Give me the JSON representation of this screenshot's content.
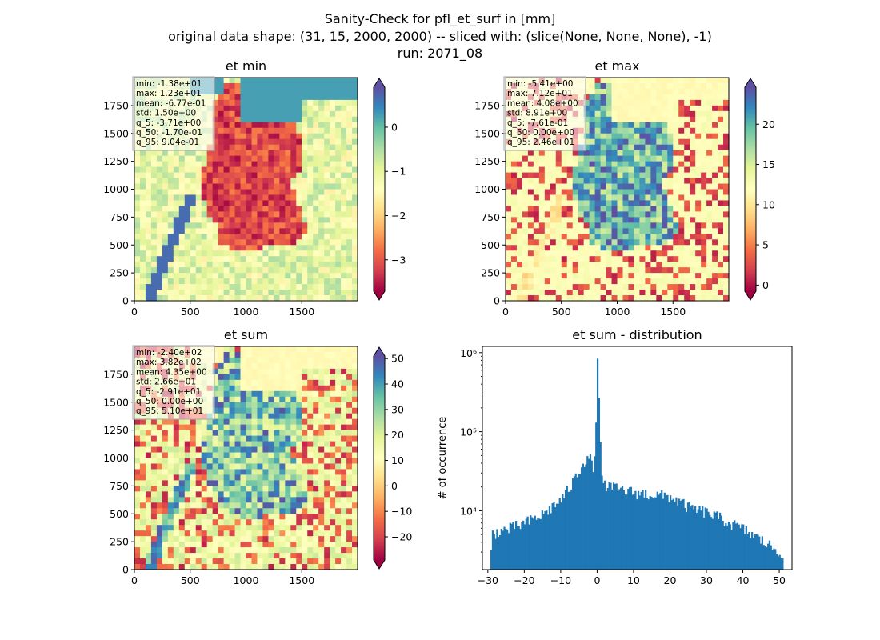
{
  "figure": {
    "suptitle": [
      "Sanity-Check for pfl_et_surf in [mm]",
      "original data shape: (31, 15, 2000, 2000) -- sliced with: (slice(None, None, None), -1)",
      "run: 2071_08"
    ]
  },
  "chart_data": [
    {
      "type": "heatmap",
      "title": "et min",
      "colormap": "Spectral",
      "xlim": [
        0,
        2000
      ],
      "ylim": [
        0,
        2000
      ],
      "xticks": [
        0,
        500,
        1000,
        1500
      ],
      "yticks": [
        0,
        250,
        500,
        750,
        1000,
        1250,
        1500,
        1750
      ],
      "colorbar": {
        "range": [
          -3.71,
          0.904
        ],
        "ticks": [
          0,
          -1,
          -2,
          -3
        ],
        "extend": "both"
      },
      "stats": [
        "min: -1.38e+01",
        "max: 1.23e+01",
        "mean: -6.77e-01",
        "std: 1.50e+00",
        "q_5: -3.71e+00",
        "q_50: -1.70e-01",
        "q_95: 9.04e-01"
      ]
    },
    {
      "type": "heatmap",
      "title": "et max",
      "colormap": "Spectral",
      "xlim": [
        0,
        2000
      ],
      "ylim": [
        0,
        2000
      ],
      "xticks": [
        0,
        500,
        1000,
        1500
      ],
      "yticks": [
        0,
        250,
        500,
        750,
        1000,
        1250,
        1500,
        1750
      ],
      "colorbar": {
        "range": [
          -0.761,
          24.6
        ],
        "ticks": [
          0,
          5,
          10,
          15,
          20
        ],
        "extend": "both"
      },
      "stats": [
        "min: -5.41e+00",
        "max: 7.12e+01",
        "mean: 4.08e+00",
        "std: 8.91e+00",
        "q_5: -7.61e-01",
        "q_50: 0.00e+00",
        "q_95: 2.46e+01"
      ]
    },
    {
      "type": "heatmap",
      "title": "et sum",
      "colormap": "Spectral",
      "xlim": [
        0,
        2000
      ],
      "ylim": [
        0,
        2000
      ],
      "xticks": [
        0,
        500,
        1000,
        1500
      ],
      "yticks": [
        0,
        250,
        500,
        750,
        1000,
        1250,
        1500,
        1750
      ],
      "colorbar": {
        "range": [
          -29.1,
          51
        ],
        "ticks": [
          -20,
          -10,
          0,
          10,
          20,
          30,
          40,
          50
        ],
        "extend": "both"
      },
      "stats": [
        "min: -2.40e+02",
        "max: 3.82e+02",
        "mean: 4.35e+00",
        "std: 2.66e+01",
        "q_5: -2.91e+01",
        "q_50: 0.00e+00",
        "q_95: 5.10e+01"
      ]
    },
    {
      "type": "bar",
      "title": "et sum - distribution",
      "ylabel": "# of occurrence",
      "yscale": "log",
      "xlim": [
        -31.5,
        53.5
      ],
      "ylim": [
        1800,
        1200000
      ],
      "xticks": [
        -30,
        -20,
        -10,
        0,
        10,
        20,
        30,
        40,
        50
      ],
      "yticks": [
        {
          "value": 10000,
          "label": "10⁴"
        },
        {
          "value": 100000,
          "label": "10⁵"
        },
        {
          "value": 1000000,
          "label": "10⁶"
        }
      ],
      "bar_color": "#1f77b4",
      "profile_x": [
        -29,
        -25,
        -20,
        -15,
        -10,
        -7,
        -5,
        -3,
        -2,
        -1,
        0,
        1,
        2,
        5,
        10,
        15,
        20,
        25,
        30,
        35,
        40,
        45,
        50
      ],
      "profile_y": [
        5200,
        5800,
        7000,
        9000,
        14000,
        22000,
        34000,
        48000,
        44000,
        30000,
        840000,
        24000,
        21000,
        19000,
        17000,
        16000,
        15000,
        11000,
        9500,
        7500,
        5800,
        4200,
        3000
      ]
    }
  ]
}
